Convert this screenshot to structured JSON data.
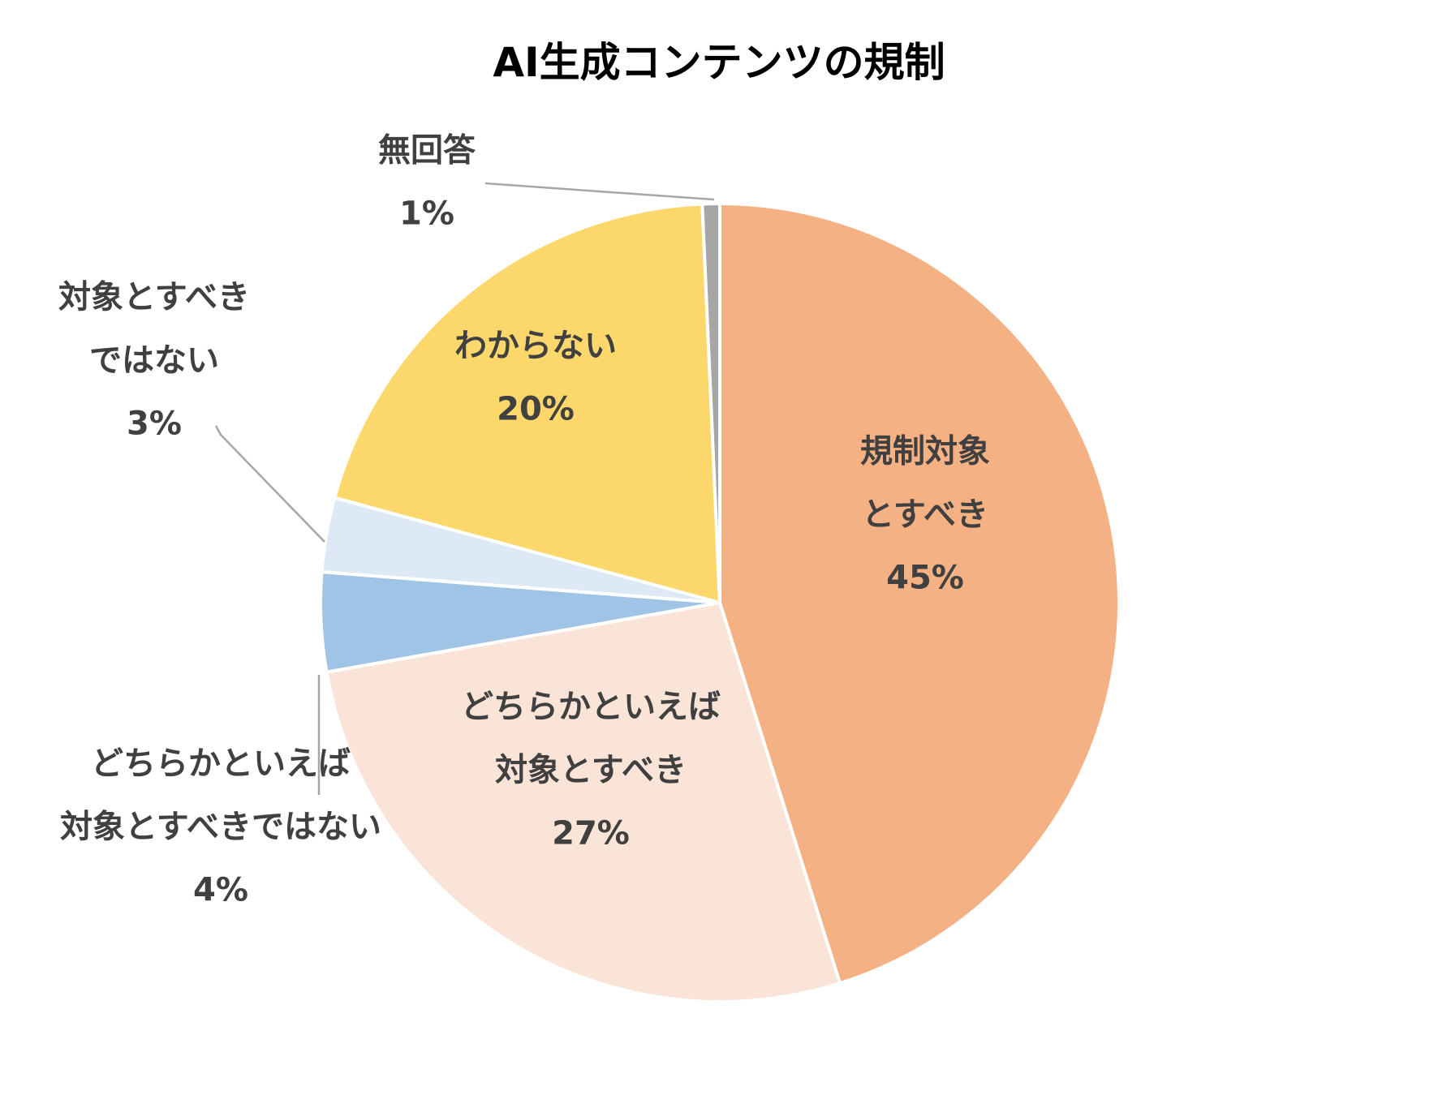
{
  "chart_data": {
    "type": "pie",
    "title": "AI生成コンテンツの規制",
    "slices": [
      {
        "label": [
          "規制対象",
          "とすべき"
        ],
        "value": 45,
        "display": "45%",
        "color": "#F4B183",
        "label_position": "inside"
      },
      {
        "label": [
          "どちらかといえば",
          "対象とすべき"
        ],
        "value": 27,
        "display": "27%",
        "color": "#FAE4D7",
        "label_position": "inside"
      },
      {
        "label": [
          "どちらかといえば",
          "対象とすべきではない"
        ],
        "value": 4,
        "display": "4%",
        "color": "#A0C4E6",
        "label_position": "outside"
      },
      {
        "label": [
          "対象とすべき",
          "ではない"
        ],
        "value": 3,
        "display": "3%",
        "color": "#DDE9F5",
        "label_position": "outside"
      },
      {
        "label": [
          "わからない"
        ],
        "value": 20,
        "display": "20%",
        "color": "#FCD76C",
        "label_position": "inside"
      },
      {
        "label": [
          "無回答"
        ],
        "value": 0.7,
        "display": "1%",
        "color": "#A6A6A6",
        "label_position": "outside"
      }
    ],
    "start": "12 o'clock",
    "direction": "clockwise",
    "legend": "none"
  }
}
